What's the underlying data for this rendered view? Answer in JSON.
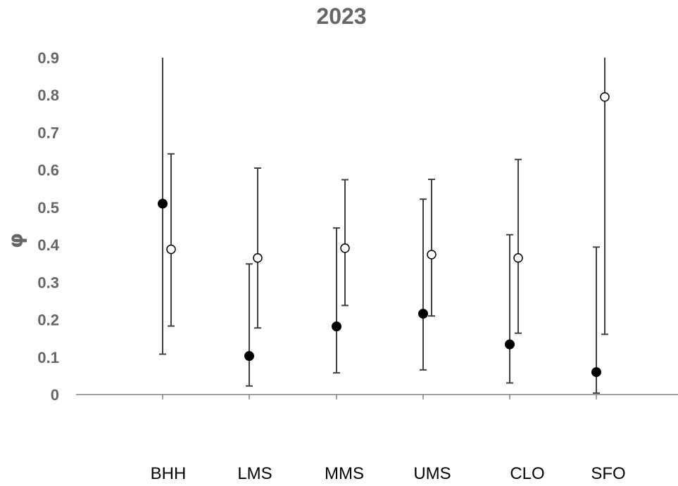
{
  "chart_data": {
    "type": "scatter",
    "title": "2023",
    "xlabel": "",
    "ylabel": "φ",
    "ylim": [
      0,
      0.9
    ],
    "yticks": [
      0,
      0.1,
      0.2,
      0.3,
      0.4,
      0.5,
      0.6,
      0.7,
      0.8,
      0.9
    ],
    "ytick_labels": [
      "0",
      "0.1",
      "0.2",
      "0.3",
      "0.4",
      "0.5",
      "0.6",
      "0.7",
      "0.8",
      "0.9"
    ],
    "grid": false,
    "categories": [
      "BHH",
      "LMS",
      "MMS",
      "UMS",
      "CLO",
      "SFO"
    ],
    "series": [
      {
        "marker": "filled-circle",
        "values": [
          0.51,
          0.103,
          0.182,
          0.216,
          0.134,
          0.06
        ],
        "err_low": [
          0.108,
          0.023,
          0.058,
          0.066,
          0.031,
          0.004
        ],
        "err_high": [
          0.9,
          0.349,
          0.445,
          0.522,
          0.427,
          0.394
        ]
      },
      {
        "marker": "open-circle",
        "values": [
          0.388,
          0.365,
          0.391,
          0.374,
          0.365,
          0.795
        ],
        "err_low": [
          0.183,
          0.178,
          0.238,
          0.21,
          0.164,
          0.161
        ],
        "err_high": [
          0.643,
          0.605,
          0.574,
          0.575,
          0.628,
          0.9
        ]
      }
    ],
    "colors": {
      "axis": "#808080",
      "text": "#666666",
      "marker": "#000000",
      "errorbar": "#404040"
    }
  }
}
